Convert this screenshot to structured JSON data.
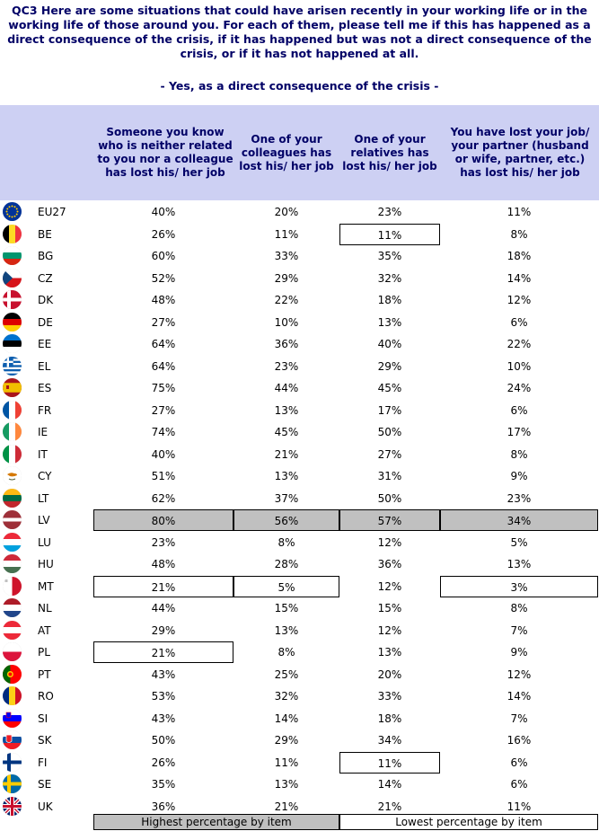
{
  "question": "QC3 Here are some situations that could have arisen recently in your working life or in the working life of those around you. For each of them, please tell me if this has happened as a direct consequence of the crisis, if it has happened but was not a direct consequence of the crisis, or if it has not happened at all.",
  "subtitle": "- Yes, as a direct consequence of the crisis -",
  "legend": {
    "highest": "Highest percentage by item",
    "lowest": "Lowest percentage by item"
  },
  "colors": {
    "header_band": "#cdd0f3",
    "header_text": "#000066",
    "highlight": "#c0c0c0"
  },
  "chart_data": {
    "type": "table",
    "columns": [
      "Someone you know who is neither related to you nor a colleague has lost his/ her job",
      "One of your colleagues has lost his/ her job",
      "One of your relatives has lost his/ her job",
      "You have lost your job/ your partner (husband or wife, partner, etc.) has lost his/ her job"
    ],
    "rows": [
      {
        "country": "EU27",
        "flag": "eu",
        "values": [
          "40%",
          "20%",
          "23%",
          "11%"
        ],
        "marks": [
          "",
          "",
          "",
          ""
        ]
      },
      {
        "country": "BE",
        "flag": "be",
        "values": [
          "26%",
          "11%",
          "11%",
          "8%"
        ],
        "marks": [
          "",
          "",
          "lowest",
          ""
        ]
      },
      {
        "country": "BG",
        "flag": "bg",
        "values": [
          "60%",
          "33%",
          "35%",
          "18%"
        ],
        "marks": [
          "",
          "",
          "",
          ""
        ]
      },
      {
        "country": "CZ",
        "flag": "cz",
        "values": [
          "52%",
          "29%",
          "32%",
          "14%"
        ],
        "marks": [
          "",
          "",
          "",
          ""
        ]
      },
      {
        "country": "DK",
        "flag": "dk",
        "values": [
          "48%",
          "22%",
          "18%",
          "12%"
        ],
        "marks": [
          "",
          "",
          "",
          ""
        ]
      },
      {
        "country": "DE",
        "flag": "de",
        "values": [
          "27%",
          "10%",
          "13%",
          "6%"
        ],
        "marks": [
          "",
          "",
          "",
          ""
        ]
      },
      {
        "country": "EE",
        "flag": "ee",
        "values": [
          "64%",
          "36%",
          "40%",
          "22%"
        ],
        "marks": [
          "",
          "",
          "",
          ""
        ]
      },
      {
        "country": "EL",
        "flag": "el",
        "values": [
          "64%",
          "23%",
          "29%",
          "10%"
        ],
        "marks": [
          "",
          "",
          "",
          ""
        ]
      },
      {
        "country": "ES",
        "flag": "es",
        "values": [
          "75%",
          "44%",
          "45%",
          "24%"
        ],
        "marks": [
          "",
          "",
          "",
          ""
        ]
      },
      {
        "country": "FR",
        "flag": "fr",
        "values": [
          "27%",
          "13%",
          "17%",
          "6%"
        ],
        "marks": [
          "",
          "",
          "",
          ""
        ]
      },
      {
        "country": "IE",
        "flag": "ie",
        "values": [
          "74%",
          "45%",
          "50%",
          "17%"
        ],
        "marks": [
          "",
          "",
          "",
          ""
        ]
      },
      {
        "country": "IT",
        "flag": "it",
        "values": [
          "40%",
          "21%",
          "27%",
          "8%"
        ],
        "marks": [
          "",
          "",
          "",
          ""
        ]
      },
      {
        "country": "CY",
        "flag": "cy",
        "values": [
          "51%",
          "13%",
          "31%",
          "9%"
        ],
        "marks": [
          "",
          "",
          "",
          ""
        ]
      },
      {
        "country": "LT",
        "flag": "lt",
        "values": [
          "62%",
          "37%",
          "50%",
          "23%"
        ],
        "marks": [
          "",
          "",
          "",
          ""
        ]
      },
      {
        "country": "LV",
        "flag": "lv",
        "values": [
          "80%",
          "56%",
          "57%",
          "34%"
        ],
        "marks": [
          "highest",
          "highest",
          "highest",
          "highest"
        ]
      },
      {
        "country": "LU",
        "flag": "lu",
        "values": [
          "23%",
          "8%",
          "12%",
          "5%"
        ],
        "marks": [
          "",
          "",
          "",
          ""
        ]
      },
      {
        "country": "HU",
        "flag": "hu",
        "values": [
          "48%",
          "28%",
          "36%",
          "13%"
        ],
        "marks": [
          "",
          "",
          "",
          ""
        ]
      },
      {
        "country": "MT",
        "flag": "mt",
        "values": [
          "21%",
          "5%",
          "12%",
          "3%"
        ],
        "marks": [
          "lowest",
          "lowest",
          "",
          "lowest"
        ]
      },
      {
        "country": "NL",
        "flag": "nl",
        "values": [
          "44%",
          "15%",
          "15%",
          "8%"
        ],
        "marks": [
          "",
          "",
          "",
          ""
        ]
      },
      {
        "country": "AT",
        "flag": "at",
        "values": [
          "29%",
          "13%",
          "12%",
          "7%"
        ],
        "marks": [
          "",
          "",
          "",
          ""
        ]
      },
      {
        "country": "PL",
        "flag": "pl",
        "values": [
          "21%",
          "8%",
          "13%",
          "9%"
        ],
        "marks": [
          "lowest",
          "",
          "",
          ""
        ]
      },
      {
        "country": "PT",
        "flag": "pt",
        "values": [
          "43%",
          "25%",
          "20%",
          "12%"
        ],
        "marks": [
          "",
          "",
          "",
          ""
        ]
      },
      {
        "country": "RO",
        "flag": "ro",
        "values": [
          "53%",
          "32%",
          "33%",
          "14%"
        ],
        "marks": [
          "",
          "",
          "",
          ""
        ]
      },
      {
        "country": "SI",
        "flag": "si",
        "values": [
          "43%",
          "14%",
          "18%",
          "7%"
        ],
        "marks": [
          "",
          "",
          "",
          ""
        ]
      },
      {
        "country": "SK",
        "flag": "sk",
        "values": [
          "50%",
          "29%",
          "34%",
          "16%"
        ],
        "marks": [
          "",
          "",
          "",
          ""
        ]
      },
      {
        "country": "FI",
        "flag": "fi",
        "values": [
          "26%",
          "11%",
          "11%",
          "6%"
        ],
        "marks": [
          "",
          "",
          "lowest",
          ""
        ]
      },
      {
        "country": "SE",
        "flag": "se",
        "values": [
          "35%",
          "13%",
          "14%",
          "6%"
        ],
        "marks": [
          "",
          "",
          "",
          ""
        ]
      },
      {
        "country": "UK",
        "flag": "uk",
        "values": [
          "36%",
          "21%",
          "21%",
          "11%"
        ],
        "marks": [
          "",
          "",
          "",
          ""
        ]
      }
    ]
  }
}
